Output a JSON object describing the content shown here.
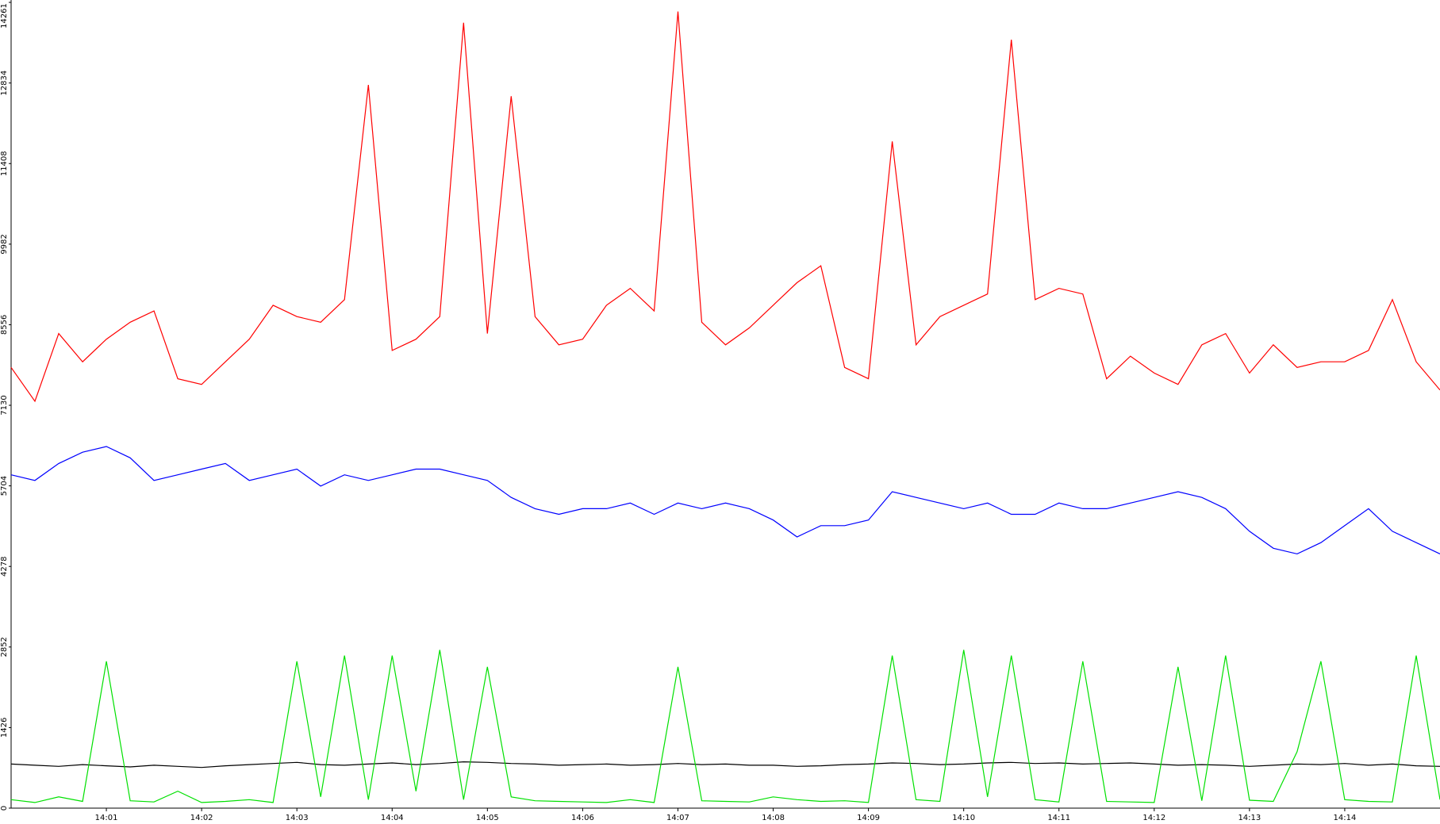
{
  "chart_data": {
    "type": "line",
    "xlim": [
      0,
      15
    ],
    "xticks": [
      {
        "value": 1,
        "label": "14:01"
      },
      {
        "value": 2,
        "label": "14:02"
      },
      {
        "value": 3,
        "label": "14:03"
      },
      {
        "value": 4,
        "label": "14:04"
      },
      {
        "value": 5,
        "label": "14:05"
      },
      {
        "value": 6,
        "label": "14:06"
      },
      {
        "value": 7,
        "label": "14:07"
      },
      {
        "value": 8,
        "label": "14:08"
      },
      {
        "value": 9,
        "label": "14:09"
      },
      {
        "value": 10,
        "label": "14:10"
      },
      {
        "value": 11,
        "label": "14:11"
      },
      {
        "value": 12,
        "label": "14:12"
      },
      {
        "value": 13,
        "label": "14:13"
      },
      {
        "value": 14,
        "label": "14:14"
      }
    ],
    "ylim": [
      0,
      14261
    ],
    "yticks": [
      0,
      1426,
      2852,
      4278,
      5704,
      7130,
      8556,
      9982,
      11408,
      12834,
      14261
    ],
    "x": [
      0,
      0.25,
      0.5,
      0.75,
      1,
      1.25,
      1.5,
      1.75,
      2,
      2.25,
      2.5,
      2.75,
      3,
      3.25,
      3.5,
      3.75,
      4,
      4.25,
      4.5,
      4.75,
      5,
      5.25,
      5.5,
      5.75,
      6,
      6.25,
      6.5,
      6.75,
      7,
      7.25,
      7.5,
      7.75,
      8,
      8.25,
      8.5,
      8.75,
      9,
      9.25,
      9.5,
      9.75,
      10,
      10.25,
      10.5,
      10.75,
      11,
      11.25,
      11.5,
      11.75,
      12,
      12.25,
      12.5,
      12.75,
      13,
      13.25,
      13.5,
      13.75,
      14,
      14.25,
      14.5,
      14.75,
      15
    ],
    "series": [
      {
        "color": "#ff0000",
        "values": [
          7800,
          7200,
          8400,
          7900,
          8300,
          8600,
          8800,
          7600,
          7500,
          7900,
          8300,
          8900,
          8700,
          8600,
          9000,
          12800,
          8100,
          8300,
          8700,
          13900,
          8400,
          12600,
          8700,
          8200,
          8300,
          8900,
          9200,
          8800,
          14100,
          8600,
          8200,
          8500,
          8900,
          9300,
          9600,
          7800,
          7600,
          11800,
          8200,
          8700,
          8900,
          9100,
          13600,
          9000,
          9200,
          9100,
          7600,
          8000,
          7700,
          7500,
          8200,
          8400,
          7700,
          8200,
          7800,
          7900,
          7900,
          8100,
          9000,
          7900,
          7400
        ]
      },
      {
        "color": "#0000ff",
        "values": [
          5900,
          5800,
          6100,
          6300,
          6400,
          6200,
          5800,
          5900,
          6000,
          6100,
          5800,
          5900,
          6000,
          5700,
          5900,
          5800,
          5900,
          6000,
          6000,
          5900,
          5800,
          5500,
          5300,
          5200,
          5300,
          5300,
          5400,
          5200,
          5400,
          5300,
          5400,
          5300,
          5100,
          4800,
          5000,
          5000,
          5100,
          5600,
          5500,
          5400,
          5300,
          5400,
          5200,
          5200,
          5400,
          5300,
          5300,
          5400,
          5500,
          5600,
          5500,
          5300,
          4900,
          4600,
          4500,
          4700,
          5000,
          5300,
          4900,
          4700,
          4500
        ]
      },
      {
        "color": "#000000",
        "values": [
          780,
          760,
          740,
          770,
          750,
          730,
          760,
          740,
          720,
          750,
          770,
          790,
          810,
          770,
          760,
          780,
          800,
          770,
          790,
          820,
          810,
          790,
          780,
          760,
          770,
          780,
          760,
          770,
          790,
          770,
          780,
          760,
          760,
          740,
          750,
          770,
          780,
          800,
          790,
          770,
          780,
          800,
          810,
          790,
          800,
          780,
          790,
          800,
          780,
          760,
          770,
          760,
          740,
          760,
          780,
          770,
          790,
          760,
          780,
          750,
          740
        ]
      },
      {
        "color": "#00e000",
        "values": [
          150,
          100,
          200,
          120,
          2600,
          130,
          110,
          300,
          100,
          120,
          150,
          100,
          2600,
          200,
          2700,
          150,
          2700,
          300,
          2800,
          150,
          2500,
          200,
          130,
          120,
          110,
          100,
          150,
          100,
          2500,
          130,
          120,
          110,
          200,
          150,
          120,
          130,
          100,
          2700,
          150,
          120,
          2800,
          200,
          2700,
          150,
          110,
          2600,
          120,
          110,
          100,
          2500,
          130,
          2700,
          140,
          120,
          1000,
          2600,
          150,
          120,
          110,
          2700,
          150
        ]
      }
    ]
  }
}
